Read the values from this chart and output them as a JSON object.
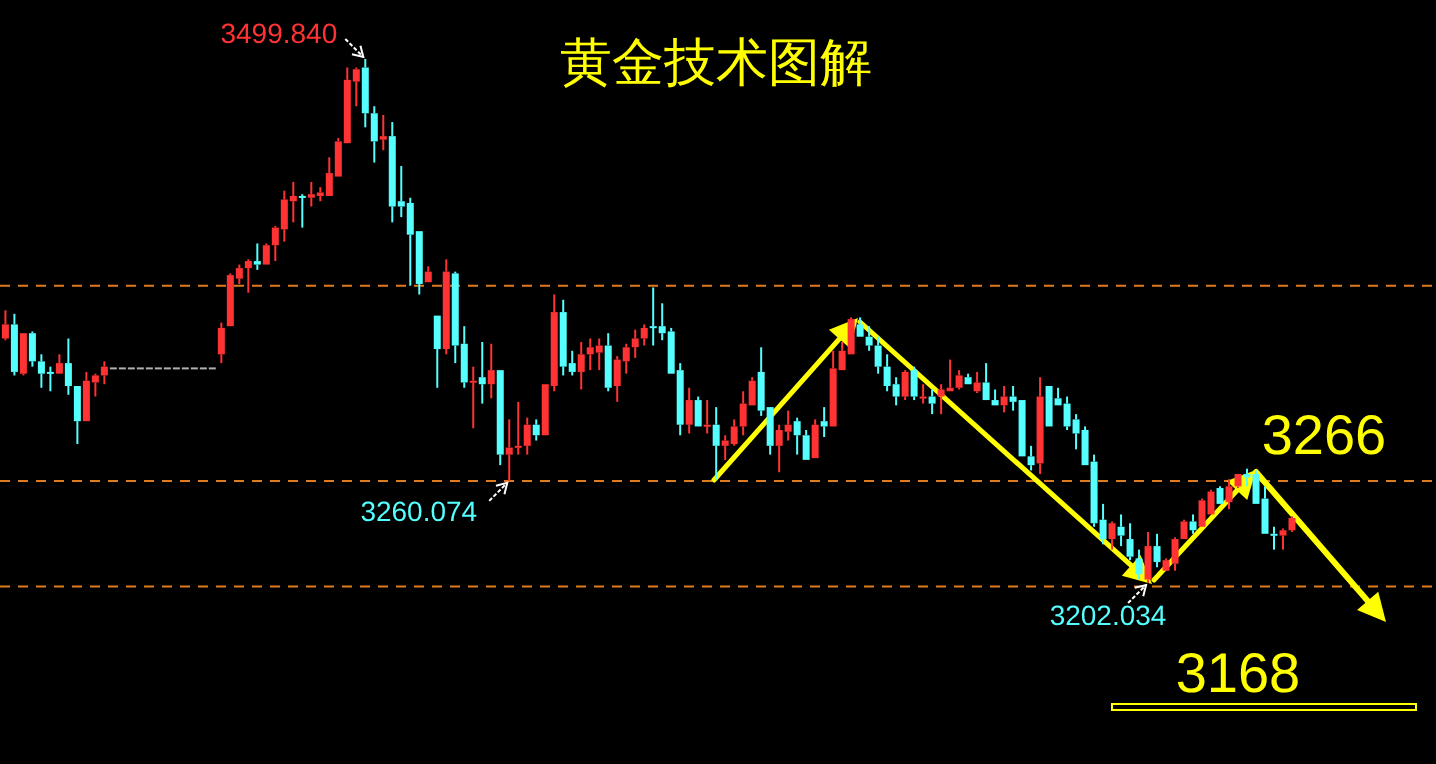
{
  "chart_data": {
    "type": "candlestick",
    "title": "黄金技术图解",
    "categories": [
      null,
      null,
      null,
      null,
      null,
      null,
      null,
      null,
      null,
      null,
      null,
      null,
      null,
      null,
      null,
      null,
      null,
      null,
      null,
      null,
      null,
      null,
      null,
      null,
      null,
      null,
      null,
      null,
      null,
      null,
      null,
      null,
      null,
      null,
      null,
      null,
      null,
      null,
      null,
      null,
      null,
      null,
      null,
      null,
      null,
      null,
      null,
      null,
      null,
      null,
      null,
      null,
      null,
      null,
      null,
      null,
      null,
      null,
      null,
      null,
      null,
      null,
      null,
      null,
      null,
      null,
      null,
      null,
      null,
      null,
      null,
      null,
      null,
      null,
      null,
      null,
      null,
      null,
      null,
      null,
      null,
      null,
      null,
      null,
      null,
      null,
      null,
      null,
      null,
      null,
      null,
      null,
      null,
      null,
      null,
      null,
      null,
      null,
      null,
      null,
      null,
      null,
      null,
      null,
      null,
      null,
      null,
      null,
      null,
      null,
      null,
      null,
      null,
      null,
      null,
      null,
      null,
      null,
      null,
      null,
      null,
      null,
      null,
      null,
      null,
      null,
      null,
      null,
      null,
      null,
      null,
      null,
      null,
      null,
      null,
      null,
      null,
      null,
      null,
      null,
      null,
      null,
      null,
      null
    ],
    "ohlc": [
      [
        3341,
        3357,
        3340,
        3349
      ],
      [
        3349,
        3355,
        3320,
        3322
      ],
      [
        3321,
        3344,
        3320,
        3344
      ],
      [
        3344,
        3345,
        3325,
        3328
      ],
      [
        3328,
        3332,
        3313,
        3321
      ],
      [
        3322,
        3325,
        3311,
        3321
      ],
      [
        3321,
        3332,
        3321,
        3327
      ],
      [
        3327,
        3341,
        3309,
        3314
      ],
      [
        3314,
        3314,
        3281,
        3294
      ],
      [
        3294,
        3322,
        3294,
        3317
      ],
      [
        3316,
        3321,
        3308,
        3320
      ],
      [
        3320,
        3328,
        3315,
        3325
      ],
      [
        3324,
        3324,
        3324,
        3324
      ],
      [
        3324,
        3324,
        3324,
        3324
      ],
      [
        3324,
        3324,
        3324,
        3324
      ],
      [
        3324,
        3324,
        3324,
        3324
      ],
      [
        3324,
        3324,
        3324,
        3324
      ],
      [
        3324,
        3324,
        3324,
        3324
      ],
      [
        3324,
        3324,
        3324,
        3324
      ],
      [
        3324,
        3324,
        3324,
        3324
      ],
      [
        3324,
        3324,
        3324,
        3324
      ],
      [
        3324,
        3324,
        3324,
        3324
      ],
      [
        3324,
        3324,
        3324,
        3324
      ],
      [
        3324,
        3324,
        3324,
        3324
      ],
      [
        3332,
        3350,
        3327,
        3347
      ],
      [
        3348,
        3378,
        3348,
        3377
      ],
      [
        3375,
        3383,
        3372,
        3381
      ],
      [
        3381,
        3386,
        3367,
        3385
      ],
      [
        3385,
        3395,
        3380,
        3383
      ],
      [
        3383,
        3395,
        3383,
        3394
      ],
      [
        3394,
        3405,
        3385,
        3404
      ],
      [
        3403,
        3425,
        3396,
        3420
      ],
      [
        3419,
        3430,
        3407,
        3422
      ],
      [
        3422,
        3423,
        3404,
        3421
      ],
      [
        3421,
        3430,
        3416,
        3423
      ],
      [
        3422,
        3427,
        3419,
        3424
      ],
      [
        3422,
        3444,
        3422,
        3435
      ],
      [
        3433,
        3455,
        3433,
        3453
      ],
      [
        3452,
        3495,
        3452,
        3488
      ],
      [
        3487,
        3495,
        3473,
        3494
      ],
      [
        3495,
        3499.84,
        3461,
        3469
      ],
      [
        3469,
        3473,
        3441,
        3453
      ],
      [
        3454,
        3468,
        3448,
        3456
      ],
      [
        3456,
        3464,
        3407,
        3416
      ],
      [
        3419,
        3439,
        3410,
        3416
      ],
      [
        3418,
        3421,
        3371,
        3400
      ],
      [
        3402,
        3402,
        3366,
        3372
      ],
      [
        3373,
        3382,
        3373,
        3379
      ],
      [
        3354,
        3354,
        3313,
        3335
      ],
      [
        3335,
        3386,
        3332,
        3379
      ],
      [
        3378,
        3379,
        3327,
        3337
      ],
      [
        3338,
        3348,
        3313,
        3316
      ],
      [
        3316,
        3325,
        3290,
        3317
      ],
      [
        3319,
        3339,
        3304,
        3315
      ],
      [
        3315,
        3338,
        3307,
        3323
      ],
      [
        3323,
        3323,
        3269,
        3275
      ],
      [
        3275,
        3295,
        3260.074,
        3279
      ],
      [
        3279,
        3305,
        3275,
        3280
      ],
      [
        3280,
        3296,
        3275,
        3292
      ],
      [
        3292,
        3295,
        3283,
        3286
      ],
      [
        3286,
        3315,
        3286,
        3315
      ],
      [
        3314,
        3366,
        3311,
        3356
      ],
      [
        3356,
        3363,
        3320,
        3325
      ],
      [
        3327,
        3334,
        3320,
        3322
      ],
      [
        3322,
        3339,
        3312,
        3332
      ],
      [
        3332,
        3341,
        3323,
        3336
      ],
      [
        3333,
        3341,
        3323,
        3337
      ],
      [
        3337,
        3344,
        3311,
        3313
      ],
      [
        3314,
        3331,
        3305,
        3329
      ],
      [
        3328,
        3338,
        3321,
        3336
      ],
      [
        3336,
        3346,
        3330,
        3341
      ],
      [
        3341,
        3349,
        3337,
        3347
      ],
      [
        3348,
        3370,
        3337,
        3347
      ],
      [
        3348,
        3361,
        3340,
        3344
      ],
      [
        3345,
        3347,
        3321,
        3321
      ],
      [
        3323,
        3327,
        3286,
        3292
      ],
      [
        3292,
        3313,
        3287,
        3306
      ],
      [
        3306,
        3308,
        3291,
        3291
      ],
      [
        3291,
        3306,
        3287,
        3292
      ],
      [
        3292,
        3302,
        3261,
        3280
      ],
      [
        3280,
        3286,
        3272,
        3283
      ],
      [
        3281,
        3295,
        3280,
        3291
      ],
      [
        3291,
        3311,
        3286,
        3304
      ],
      [
        3303,
        3319,
        3303,
        3317
      ],
      [
        3322,
        3336,
        3297,
        3300
      ],
      [
        3302,
        3302,
        3275,
        3280
      ],
      [
        3280,
        3292,
        3265,
        3289
      ],
      [
        3288,
        3300,
        3283,
        3292
      ],
      [
        3294,
        3296,
        3275,
        3286
      ],
      [
        3286,
        3289,
        3272,
        3272
      ],
      [
        3273,
        3295,
        3273,
        3292
      ],
      [
        3294,
        3302,
        3285,
        3291
      ],
      [
        3291,
        3334,
        3291,
        3324
      ],
      [
        3323,
        3339,
        3323,
        3334
      ],
      [
        3332,
        3353,
        3332,
        3352
      ],
      [
        3349,
        3353,
        3342,
        3342
      ],
      [
        3342,
        3348,
        3334,
        3337
      ],
      [
        3337,
        3342,
        3321,
        3325
      ],
      [
        3325,
        3332,
        3311,
        3314
      ],
      [
        3315,
        3319,
        3303,
        3308
      ],
      [
        3308,
        3323,
        3306,
        3322
      ],
      [
        3323,
        3325,
        3306,
        3308
      ],
      [
        3307,
        3315,
        3304,
        3308
      ],
      [
        3308,
        3312,
        3298,
        3304
      ],
      [
        3308,
        3315,
        3298,
        3312
      ],
      [
        3311,
        3329,
        3311,
        3313
      ],
      [
        3313,
        3323,
        3312,
        3320
      ],
      [
        3319,
        3321,
        3315,
        3315
      ],
      [
        3311,
        3322,
        3310,
        3316
      ],
      [
        3316,
        3327,
        3306,
        3306
      ],
      [
        3306,
        3312,
        3303,
        3303
      ],
      [
        3303,
        3314,
        3299,
        3308
      ],
      [
        3308,
        3314,
        3300,
        3305
      ],
      [
        3306,
        3306,
        3274,
        3274
      ],
      [
        3274,
        3280,
        3266,
        3269
      ],
      [
        3270,
        3319,
        3264,
        3308
      ],
      [
        3314,
        3314,
        3291,
        3291
      ],
      [
        3307,
        3313,
        3303,
        3303
      ],
      [
        3304,
        3308,
        3289,
        3291
      ],
      [
        3295,
        3298,
        3278,
        3287
      ],
      [
        3289,
        3291,
        3269,
        3269
      ],
      [
        3271,
        3275,
        3234,
        3236
      ],
      [
        3238,
        3247,
        3224,
        3227
      ],
      [
        3227,
        3237,
        3221,
        3236
      ],
      [
        3234,
        3241,
        3223,
        3229
      ],
      [
        3227,
        3236,
        3215,
        3217
      ],
      [
        3216,
        3221,
        3204,
        3207
      ],
      [
        3204,
        3231,
        3202.034,
        3223
      ],
      [
        3223,
        3230,
        3211,
        3214
      ],
      [
        3209,
        3216,
        3209,
        3215
      ],
      [
        3213,
        3228,
        3209,
        3227
      ],
      [
        3227,
        3238,
        3227,
        3237
      ],
      [
        3237,
        3241,
        3230,
        3232
      ],
      [
        3234,
        3250,
        3234,
        3249
      ],
      [
        3241,
        3255,
        3241,
        3254
      ],
      [
        3256,
        3257,
        3247,
        3247
      ],
      [
        3248,
        3261,
        3244,
        3257
      ],
      [
        3257,
        3264,
        3256,
        3264
      ],
      [
        3264,
        3267,
        3257,
        3262
      ],
      [
        3264,
        3266,
        3247,
        3247
      ],
      [
        3250,
        3257,
        3230,
        3230
      ],
      [
        3230,
        3234,
        3221,
        3229
      ],
      [
        3229,
        3233,
        3221,
        3232
      ],
      [
        3232,
        3240,
        3231,
        3239
      ]
    ],
    "annotations": [
      "3499.840",
      {
        "text": "3260.074",
        "y": 3260.074
      },
      {
        "text": "3202.034",
        "y": 3202.034
      },
      "3266",
      "3168"
    ],
    "ref_lines": [
      {
        "axis": "y",
        "value": 3371,
        "color": "#e07a1f",
        "line_style": "dashed"
      },
      {
        "axis": "y",
        "value": 3260,
        "color": "#e07a1f",
        "line_style": "dashed"
      },
      {
        "axis": "y",
        "value": 3200,
        "color": "#e07a1f",
        "line_style": "dashed"
      }
    ]
  }
}
